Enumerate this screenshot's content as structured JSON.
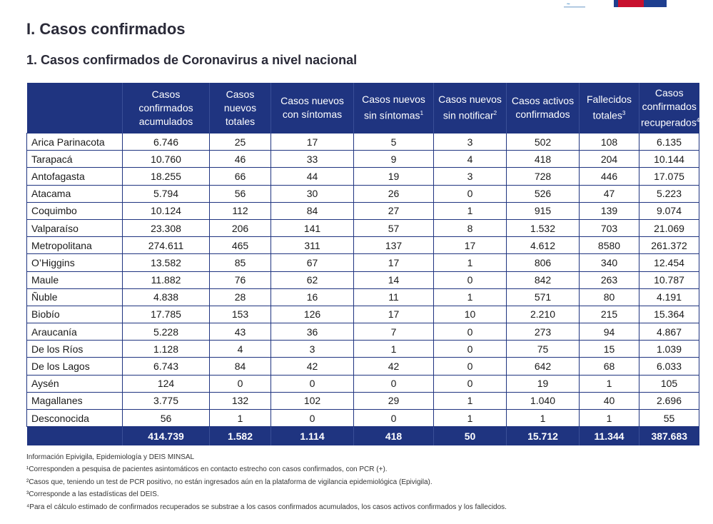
{
  "section_title": "I. Casos confirmados",
  "subsection_title": "1. Casos confirmados de Coronavirus a nivel nacional",
  "columns": [
    {
      "label": "Casos confirmados acumulados",
      "sup": ""
    },
    {
      "label": "Casos nuevos totales",
      "sup": ""
    },
    {
      "label": "Casos nuevos con síntomas",
      "sup": ""
    },
    {
      "label": "Casos nuevos sin síntomas",
      "sup": "1"
    },
    {
      "label": "Casos nuevos sin notificar",
      "sup": "2"
    },
    {
      "label": "Casos activos confirmados",
      "sup": ""
    },
    {
      "label": "Fallecidos totales",
      "sup": "3"
    },
    {
      "label": "Casos confirmados recuperados",
      "sup": "4"
    }
  ],
  "rows": [
    {
      "region": "Arica Parinacota",
      "values": [
        "6.746",
        "25",
        "17",
        "5",
        "3",
        "502",
        "108",
        "6.135"
      ]
    },
    {
      "region": "Tarapacá",
      "values": [
        "10.760",
        "46",
        "33",
        "9",
        "4",
        "418",
        "204",
        "10.144"
      ]
    },
    {
      "region": "Antofagasta",
      "values": [
        "18.255",
        "66",
        "44",
        "19",
        "3",
        "728",
        "446",
        "17.075"
      ]
    },
    {
      "region": "Atacama",
      "values": [
        "5.794",
        "56",
        "30",
        "26",
        "0",
        "526",
        "47",
        "5.223"
      ]
    },
    {
      "region": "Coquimbo",
      "values": [
        "10.124",
        "112",
        "84",
        "27",
        "1",
        "915",
        "139",
        "9.074"
      ]
    },
    {
      "region": "Valparaíso",
      "values": [
        "23.308",
        "206",
        "141",
        "57",
        "8",
        "1.532",
        "703",
        "21.069"
      ]
    },
    {
      "region": "Metropolitana",
      "values": [
        "274.611",
        "465",
        "311",
        "137",
        "17",
        "4.612",
        "8580",
        "261.372"
      ]
    },
    {
      "region": "O’Higgins",
      "values": [
        "13.582",
        "85",
        "67",
        "17",
        "1",
        "806",
        "340",
        "12.454"
      ]
    },
    {
      "region": "Maule",
      "values": [
        "11.882",
        "76",
        "62",
        "14",
        "0",
        "842",
        "263",
        "10.787"
      ]
    },
    {
      "region": "Ñuble",
      "values": [
        "4.838",
        "28",
        "16",
        "11",
        "1",
        "571",
        "80",
        "4.191"
      ]
    },
    {
      "region": "Biobío",
      "values": [
        "17.785",
        "153",
        "126",
        "17",
        "10",
        "2.210",
        "215",
        "15.364"
      ]
    },
    {
      "region": "Araucanía",
      "values": [
        "5.228",
        "43",
        "36",
        "7",
        "0",
        "273",
        "94",
        "4.867"
      ]
    },
    {
      "region": "De los Ríos",
      "values": [
        "1.128",
        "4",
        "3",
        "1",
        "0",
        "75",
        "15",
        "1.039"
      ]
    },
    {
      "region": "De los Lagos",
      "values": [
        "6.743",
        "84",
        "42",
        "42",
        "0",
        "642",
        "68",
        "6.033"
      ]
    },
    {
      "region": "Aysén",
      "values": [
        "124",
        "0",
        "0",
        "0",
        "0",
        "19",
        "1",
        "105"
      ]
    },
    {
      "region": "Magallanes",
      "values": [
        "3.775",
        "132",
        "102",
        "29",
        "1",
        "1.040",
        "40",
        "2.696"
      ]
    },
    {
      "region": "Desconocida",
      "values": [
        "56",
        "1",
        "0",
        "0",
        "1",
        "1",
        "1",
        "55"
      ]
    }
  ],
  "totals": [
    "414.739",
    "1.582",
    "1.114",
    "418",
    "50",
    "15.712",
    "11.344",
    "387.683"
  ],
  "source": "Información Epivigila, Epidemiología y DEIS MINSAL",
  "footnotes": [
    "¹Corresponden a pesquisa de pacientes asintomáticos en contacto estrecho con casos confirmados, con PCR (+).",
    "²Casos que, teniendo un test de PCR positivo, no están ingresados aún en la plataforma de vigilancia epidemiológica (Epivigila).",
    "³Corresponde a las estadísticas del DEIS.",
    "⁴Para el cálculo estimado de confirmados recuperados se substrae a los casos confirmados acumulados, los casos activos confirmados y los fallecidos."
  ],
  "colors": {
    "header_bg": "#1f3480",
    "border": "#1f3480",
    "text": "#1a1a1a"
  }
}
